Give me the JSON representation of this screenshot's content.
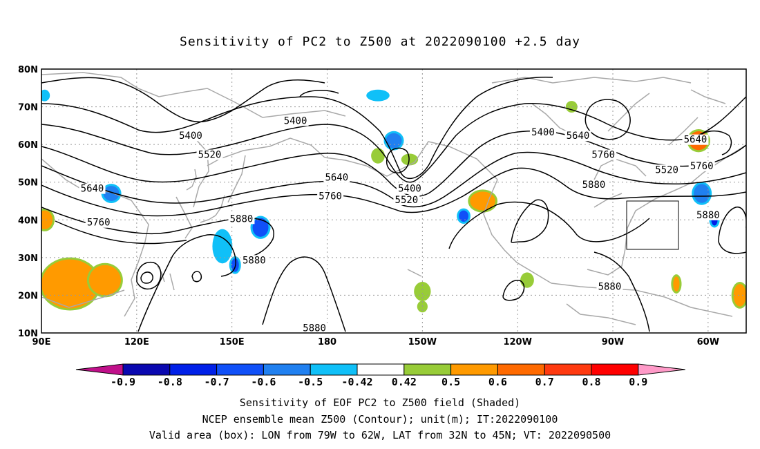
{
  "title": "Sensitivity of PC2 to Z500 at 2022090100 +2.5 day",
  "lon_ticks": [
    "90E",
    "120E",
    "150E",
    "180",
    "150W",
    "120W",
    "90W",
    "60W"
  ],
  "lat_ticks": [
    "80N",
    "70N",
    "60N",
    "50N",
    "40N",
    "30N",
    "20N",
    "10N"
  ],
  "map_extent": {
    "lon_min": 90,
    "lon_max": 312,
    "lat_min": 10,
    "lat_max": 80
  },
  "contour_labels": [
    {
      "text": "5400",
      "lon": 137,
      "lat": 62
    },
    {
      "text": "5400",
      "lon": 170,
      "lat": 66
    },
    {
      "text": "5400",
      "lon": 248,
      "lat": 63
    },
    {
      "text": "5400",
      "lon": 206,
      "lat": 48
    },
    {
      "text": "5520",
      "lon": 143,
      "lat": 57
    },
    {
      "text": "5520",
      "lon": 205,
      "lat": 45
    },
    {
      "text": "5520",
      "lon": 287,
      "lat": 53
    },
    {
      "text": "5640",
      "lon": 106,
      "lat": 48
    },
    {
      "text": "5640",
      "lon": 183,
      "lat": 51
    },
    {
      "text": "5640",
      "lon": 259,
      "lat": 62
    },
    {
      "text": "5640",
      "lon": 296,
      "lat": 61
    },
    {
      "text": "5760",
      "lon": 108,
      "lat": 39
    },
    {
      "text": "5760",
      "lon": 181,
      "lat": 46
    },
    {
      "text": "5760",
      "lon": 267,
      "lat": 57
    },
    {
      "text": "5760",
      "lon": 298,
      "lat": 54
    },
    {
      "text": "5880",
      "lon": 153,
      "lat": 40
    },
    {
      "text": "5880",
      "lon": 157,
      "lat": 29
    },
    {
      "text": "5880",
      "lon": 264,
      "lat": 49
    },
    {
      "text": "5880",
      "lon": 300,
      "lat": 41
    },
    {
      "text": "5880",
      "lon": 269,
      "lat": 22
    },
    {
      "text": "5880",
      "lon": 176,
      "lat": 11
    }
  ],
  "valid_box": {
    "lon_w": -79,
    "lon_e": -62,
    "lat_s": 32,
    "lat_n": 45
  },
  "colorbar": {
    "labels": [
      "-0.9",
      "-0.8",
      "-0.7",
      "-0.6",
      "-0.5",
      "-0.42",
      "0.42",
      "0.5",
      "0.6",
      "0.7",
      "0.8",
      "0.9"
    ],
    "colors": [
      "#c0108a",
      "#0a08b0",
      "#0020e8",
      "#1050f8",
      "#2080f0",
      "#10c0f8",
      "#ffffff",
      "#98cc38",
      "#ff9a00",
      "#ff6a00",
      "#ff3a10",
      "#ff0000",
      "#ff9ac8"
    ]
  },
  "caption": {
    "line1": "Sensitivity of EOF PC2 to Z500 field (Shaded)",
    "line2": "NCEP ensemble mean Z500 (Contour); unit(m); IT:2022090100",
    "line3": "Valid area (box): LON from 79W to 62W, LAT from 32N to 45N; VT: 2022090500"
  },
  "blobs": [
    {
      "lon": 91,
      "lat": 40,
      "rx": 2.5,
      "ry": 2.5,
      "c": "#ff9a00",
      "e": "#98cc38"
    },
    {
      "lon": 99,
      "lat": 23,
      "rx": 9,
      "ry": 6.5,
      "c": "#ff9a00",
      "e": "#98cc38"
    },
    {
      "lon": 110,
      "lat": 24,
      "rx": 5,
      "ry": 4,
      "c": "#ff9a00",
      "e": "#98cc38"
    },
    {
      "lon": 112,
      "lat": 47,
      "rx": 2.5,
      "ry": 2,
      "c": "#2080f0",
      "e": "#10c0f8"
    },
    {
      "lon": 147,
      "lat": 33,
      "rx": 2.5,
      "ry": 4,
      "c": "#10c0f8",
      "e": "#10c0f8"
    },
    {
      "lon": 151,
      "lat": 28,
      "rx": 1.2,
      "ry": 1.8,
      "c": "#1050f8",
      "e": "#10c0f8"
    },
    {
      "lon": 159,
      "lat": 38,
      "rx": 2.5,
      "ry": 2.5,
      "c": "#1050f8",
      "e": "#10c0f8"
    },
    {
      "lon": 196,
      "lat": 73,
      "rx": 3,
      "ry": 1,
      "c": "#10c0f8",
      "e": "#10c0f8"
    },
    {
      "lon": 201,
      "lat": 61,
      "rx": 2.5,
      "ry": 2,
      "c": "#2080f0",
      "e": "#10c0f8"
    },
    {
      "lon": 196,
      "lat": 57,
      "rx": 1.5,
      "ry": 1.5,
      "c": "#98cc38",
      "e": "#98cc38"
    },
    {
      "lon": 206,
      "lat": 56,
      "rx": 2,
      "ry": 1,
      "c": "#98cc38",
      "e": "#98cc38"
    },
    {
      "lon": 229,
      "lat": 45,
      "rx": 4,
      "ry": 2.5,
      "c": "#ff9a00",
      "e": "#98cc38"
    },
    {
      "lon": 223,
      "lat": 41,
      "rx": 1.5,
      "ry": 1.5,
      "c": "#1050f8",
      "e": "#10c0f8"
    },
    {
      "lon": 243,
      "lat": 24,
      "rx": 1.5,
      "ry": 1.5,
      "c": "#98cc38",
      "e": "#98cc38"
    },
    {
      "lon": 210,
      "lat": 21,
      "rx": 2,
      "ry": 2,
      "c": "#98cc38",
      "e": "#98cc38"
    },
    {
      "lon": 210,
      "lat": 17,
      "rx": 1,
      "ry": 1,
      "c": "#98cc38",
      "e": "#98cc38"
    },
    {
      "lon": 297,
      "lat": 61,
      "rx": 3,
      "ry": 2.5,
      "c": "#ff6a00",
      "e": "#98cc38"
    },
    {
      "lon": 298,
      "lat": 47,
      "rx": 2.5,
      "ry": 2.5,
      "c": "#2080f0",
      "e": "#10c0f8"
    },
    {
      "lon": 302,
      "lat": 40,
      "rx": 1,
      "ry": 1.5,
      "c": "#0020e8",
      "e": "#10c0f8"
    },
    {
      "lon": 290,
      "lat": 23,
      "rx": 1,
      "ry": 2,
      "c": "#ff9a00",
      "e": "#98cc38"
    },
    {
      "lon": 310,
      "lat": 20,
      "rx": 2,
      "ry": 3,
      "c": "#ff9a00",
      "e": "#98cc38"
    },
    {
      "lon": 257,
      "lat": 70,
      "rx": 1.2,
      "ry": 1,
      "c": "#98cc38",
      "e": "#98cc38"
    },
    {
      "lon": 91,
      "lat": 73,
      "rx": 1,
      "ry": 1,
      "c": "#10c0f8",
      "e": "#10c0f8"
    }
  ]
}
